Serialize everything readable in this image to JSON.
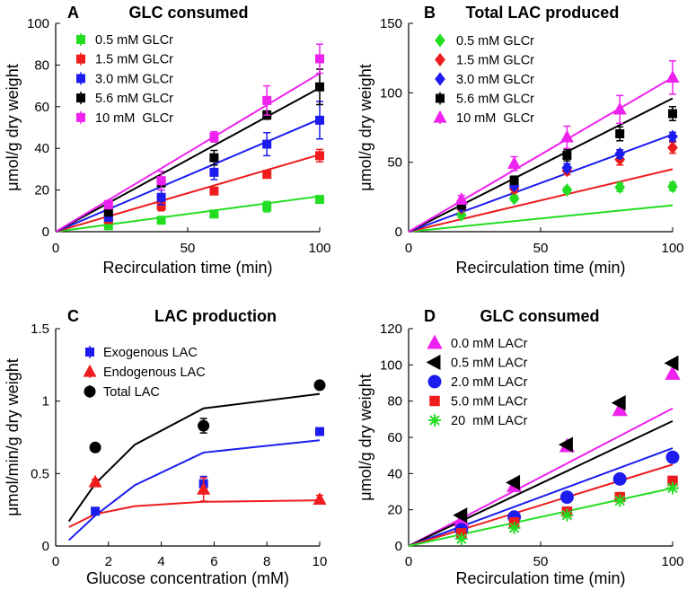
{
  "chart_data": [
    {
      "panel": "A",
      "type": "scatter",
      "title": "GLC consumed",
      "xlabel": "Recirculation time (min)",
      "ylabel": "μmol/g dry weight",
      "xlim": [
        0,
        100
      ],
      "ylim": [
        0,
        100
      ],
      "xticks": [
        0,
        50,
        100
      ],
      "yticks": [
        0,
        20,
        40,
        60,
        80,
        100
      ],
      "grid": false,
      "legend_position": "top-left",
      "series": [
        {
          "name": "0.5 mM GLCr",
          "color": "#22dd22",
          "marker": "square",
          "x": [
            20,
            40,
            60,
            80,
            100
          ],
          "y": [
            3,
            5.5,
            8.5,
            12,
            15.5
          ],
          "err": [
            2,
            1.5,
            1.5,
            2.5,
            1.5
          ],
          "fit": {
            "x": [
              0,
              100
            ],
            "y": [
              0,
              17
            ]
          }
        },
        {
          "name": "1.5 mM GLCr",
          "color": "#ee1c1c",
          "marker": "square",
          "x": [
            20,
            40,
            60,
            80,
            100
          ],
          "y": [
            6,
            12.5,
            19.5,
            27.5,
            36.5
          ],
          "err": [
            2,
            2.5,
            1.5,
            1.5,
            3
          ],
          "fit": {
            "x": [
              0,
              100
            ],
            "y": [
              0,
              37
            ]
          }
        },
        {
          "name": "3.0 mM GLCr",
          "color": "#1c1cee",
          "marker": "square",
          "x": [
            20,
            40,
            60,
            80,
            100
          ],
          "y": [
            7,
            16.5,
            28.5,
            42,
            53.5
          ],
          "err": [
            2,
            3.5,
            3.5,
            5.5,
            9
          ],
          "fit": {
            "x": [
              0,
              100
            ],
            "y": [
              0,
              54
            ]
          }
        },
        {
          "name": "5.6 mM GLCr",
          "color": "#000000",
          "marker": "square",
          "x": [
            20,
            40,
            60,
            80,
            100
          ],
          "y": [
            9.5,
            23.5,
            35.5,
            56,
            69.5
          ],
          "err": [
            2,
            2,
            3.5,
            2,
            8.5
          ],
          "fit": {
            "x": [
              0,
              100
            ],
            "y": [
              0,
              69
            ]
          }
        },
        {
          "name": "10 mM  GLCr",
          "color": "#ee22ee",
          "marker": "square",
          "x": [
            20,
            40,
            60,
            80,
            100
          ],
          "y": [
            13,
            24.5,
            45.5,
            63,
            83
          ],
          "err": [
            2,
            4.5,
            2.5,
            7,
            7
          ],
          "fit": {
            "x": [
              0,
              100
            ],
            "y": [
              0,
              76
            ]
          }
        }
      ]
    },
    {
      "panel": "B",
      "type": "scatter",
      "title": "Total LAC produced",
      "xlabel": "Recirculation time (min)",
      "ylabel": "μmol/g dry weight",
      "xlim": [
        0,
        100
      ],
      "ylim": [
        0,
        150
      ],
      "xticks": [
        0,
        50,
        100
      ],
      "yticks": [
        0,
        50,
        100,
        150
      ],
      "grid": false,
      "legend_position": "top-left",
      "series": [
        {
          "name": "0.5 mM GLCr",
          "color": "#22dd22",
          "marker": "diamond",
          "x": [
            20,
            40,
            60,
            80,
            100
          ],
          "y": [
            12,
            24,
            30,
            32,
            32.5
          ],
          "err": [
            1.5,
            2,
            2,
            3,
            3
          ],
          "fit": {
            "x": [
              0,
              100
            ],
            "y": [
              0,
              19
            ]
          }
        },
        {
          "name": "1.5 mM GLCr",
          "color": "#ee1c1c",
          "marker": "diamond",
          "x": [
            20,
            40,
            60,
            80,
            100
          ],
          "y": [
            17,
            31,
            44,
            52,
            60.5
          ],
          "err": [
            2,
            3,
            3,
            4,
            4
          ],
          "fit": {
            "x": [
              0,
              100
            ],
            "y": [
              0,
              45
            ]
          }
        },
        {
          "name": "3.0 mM GLCr",
          "color": "#1c1cee",
          "marker": "diamond",
          "x": [
            20,
            40,
            60,
            80,
            100
          ],
          "y": [
            18,
            33,
            46,
            56,
            68.5
          ],
          "err": [
            2,
            2,
            3,
            3,
            3
          ],
          "fit": {
            "x": [
              0,
              100
            ],
            "y": [
              0,
              70
            ]
          }
        },
        {
          "name": "5.6 mM GLCr",
          "color": "#000000",
          "marker": "square",
          "x": [
            20,
            40,
            60,
            80,
            100
          ],
          "y": [
            19,
            37,
            55,
            70.5,
            85
          ],
          "err": [
            2,
            3,
            4,
            5,
            5
          ],
          "fit": {
            "x": [
              0,
              100
            ],
            "y": [
              0,
              96
            ]
          }
        },
        {
          "name": "10 mM  GLCr",
          "color": "#ee22ee",
          "marker": "triangle-up",
          "x": [
            20,
            40,
            60,
            80,
            100
          ],
          "y": [
            23,
            49,
            68,
            88,
            111
          ],
          "err": [
            3,
            5,
            8,
            10,
            12
          ],
          "fit": {
            "x": [
              0,
              100
            ],
            "y": [
              0,
              111
            ]
          }
        }
      ]
    },
    {
      "panel": "C",
      "type": "scatter",
      "title": "LAC production",
      "xlabel": "Glucose concentration (mM)",
      "ylabel": "μmol/min/g dry weight",
      "xlim": [
        0,
        10
      ],
      "ylim": [
        0,
        1.5
      ],
      "xticks": [
        0,
        2,
        4,
        6,
        8,
        10
      ],
      "yticks": [
        0,
        0.5,
        1,
        1.5
      ],
      "grid": false,
      "legend_position": "top-left",
      "series": [
        {
          "name": "Exogenous LAC",
          "color": "#1c1cee",
          "marker": "square",
          "x": [
            1.5,
            5.6,
            10
          ],
          "y": [
            0.24,
            0.43,
            0.79
          ],
          "err": [
            0.02,
            0.05,
            0.02
          ],
          "fit": {
            "x": [
              0.5,
              1.5,
              3,
              5.6,
              10
            ],
            "y": [
              0.04,
              0.21,
              0.42,
              0.645,
              0.73
            ]
          }
        },
        {
          "name": "Endogenous LAC",
          "color": "#ee1c1c",
          "marker": "triangle-up",
          "x": [
            1.5,
            5.6,
            10
          ],
          "y": [
            0.44,
            0.39,
            0.32
          ],
          "err": [
            0.02,
            0.08,
            0.03
          ],
          "fit": {
            "x": [
              0.5,
              1.5,
              3,
              5.6,
              10
            ],
            "y": [
              0.13,
              0.22,
              0.275,
              0.305,
              0.315
            ]
          }
        },
        {
          "name": "Total LAC",
          "color": "#000000",
          "marker": "circle",
          "x": [
            1.5,
            5.6,
            10
          ],
          "y": [
            0.68,
            0.83,
            1.11
          ],
          "err": [
            0.02,
            0.05,
            0.02
          ],
          "fit": {
            "x": [
              0.5,
              1.5,
              3,
              5.6,
              10
            ],
            "y": [
              0.17,
              0.43,
              0.7,
              0.95,
              1.05
            ]
          }
        }
      ]
    },
    {
      "panel": "D",
      "type": "scatter",
      "title": "GLC consumed",
      "xlabel": "Recirculation time (min)",
      "ylabel": "μmol/g dry weight",
      "xlim": [
        0,
        100
      ],
      "ylim": [
        0,
        120
      ],
      "xticks": [
        0,
        50,
        100
      ],
      "yticks": [
        0,
        20,
        40,
        60,
        80,
        100,
        120
      ],
      "grid": false,
      "legend_position": "top-left",
      "series": [
        {
          "name": "0.0 mM LACr",
          "color": "#ee22ee",
          "marker": "triangle-up",
          "x": [
            20,
            40,
            60,
            80,
            100
          ],
          "y": [
            14,
            33,
            55,
            75,
            95
          ],
          "fit": {
            "x": [
              0,
              100
            ],
            "y": [
              0,
              76
            ]
          }
        },
        {
          "name": "0.5 mM LACr",
          "color": "#000000",
          "marker": "triangle-left",
          "x": [
            20,
            40,
            60,
            80,
            100
          ],
          "y": [
            17,
            35,
            56,
            79,
            101
          ],
          "fit": {
            "x": [
              0,
              100
            ],
            "y": [
              0,
              69
            ]
          }
        },
        {
          "name": "2.0 mM LACr",
          "color": "#1c1cee",
          "marker": "circle",
          "x": [
            20,
            40,
            60,
            80,
            100
          ],
          "y": [
            9,
            16,
            27,
            37,
            49
          ],
          "fit": {
            "x": [
              0,
              100
            ],
            "y": [
              0,
              54
            ]
          }
        },
        {
          "name": "5.0 mM LACr",
          "color": "#ee1c1c",
          "marker": "square",
          "x": [
            20,
            40,
            60,
            80,
            100
          ],
          "y": [
            7,
            13,
            19,
            27,
            36
          ],
          "fit": {
            "x": [
              0,
              100
            ],
            "y": [
              0,
              45
            ]
          }
        },
        {
          "name": "20  mM LACr",
          "color": "#22dd22",
          "marker": "asterisk",
          "x": [
            20,
            40,
            60,
            80,
            100
          ],
          "y": [
            4,
            10,
            17,
            25,
            32
          ],
          "fit": {
            "x": [
              0,
              100
            ],
            "y": [
              0,
              32
            ]
          }
        }
      ]
    }
  ]
}
